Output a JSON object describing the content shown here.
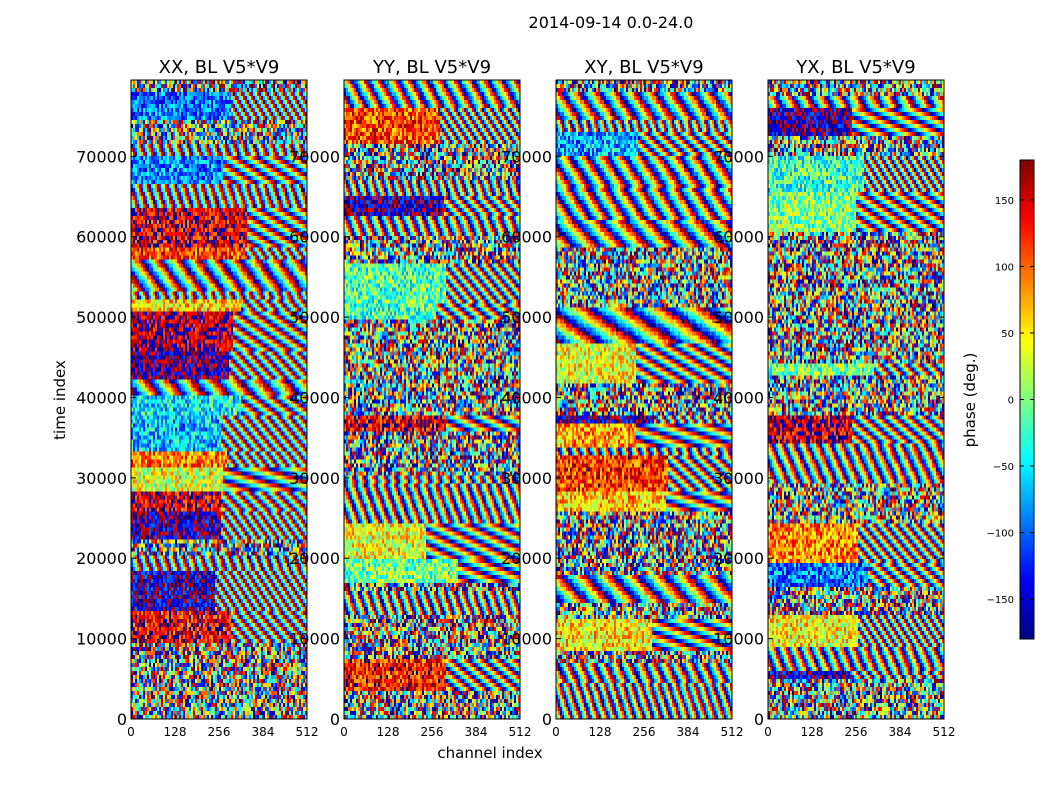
{
  "figure_title": "2014-09-14 0.0-24.0",
  "chart_data": [
    {
      "type": "heatmap",
      "title": "XX, BL V5*V9",
      "xlabel": "channel index",
      "ylabel": "time index",
      "xlim": [
        0,
        512
      ],
      "ylim": [
        0,
        79500
      ],
      "xticks": [
        0,
        128,
        256,
        384,
        512
      ],
      "yticks": [
        0,
        10000,
        20000,
        30000,
        40000,
        50000,
        60000,
        70000
      ],
      "value_range": [
        -180,
        180
      ]
    },
    {
      "type": "heatmap",
      "title": "YY, BL V5*V9",
      "xlabel": "channel index",
      "xlim": [
        0,
        512
      ],
      "ylim": [
        0,
        79500
      ],
      "xticks": [
        0,
        128,
        256,
        384,
        512
      ],
      "yticks": [
        0,
        10000,
        20000,
        30000,
        40000,
        50000,
        60000,
        70000
      ],
      "value_range": [
        -180,
        180
      ]
    },
    {
      "type": "heatmap",
      "title": "XY, BL V5*V9",
      "xlim": [
        0,
        512
      ],
      "ylim": [
        0,
        79500
      ],
      "xticks": [
        0,
        128,
        256,
        384,
        512
      ],
      "yticks": [
        0,
        10000,
        20000,
        30000,
        40000,
        50000,
        60000,
        70000
      ],
      "value_range": [
        -180,
        180
      ]
    },
    {
      "type": "heatmap",
      "title": "YX, BL V5*V9",
      "xlim": [
        0,
        512
      ],
      "ylim": [
        0,
        79500
      ],
      "xticks": [
        0,
        128,
        256,
        384,
        512
      ],
      "yticks": [
        0,
        10000,
        20000,
        30000,
        40000,
        50000,
        60000,
        70000
      ],
      "value_range": [
        -180,
        180
      ]
    }
  ],
  "colorbar": {
    "label": "phase (deg.)",
    "range": [
      -180,
      180
    ],
    "ticks": [
      150,
      100,
      50,
      0,
      -50,
      -100,
      -150
    ],
    "tick_labels": [
      "150",
      "100",
      "50",
      "0",
      "−50",
      "−100",
      "−150"
    ],
    "colormap": [
      "#00007f",
      "#0000ff",
      "#007fff",
      "#00ffff",
      "#7fff7f",
      "#ffff00",
      "#ff7f00",
      "#ff0000",
      "#7f0000"
    ]
  },
  "x_axis_label": "channel index",
  "y_axis_label": "time index",
  "colors": {
    "frame": "#000000",
    "background": "#ffffff"
  }
}
